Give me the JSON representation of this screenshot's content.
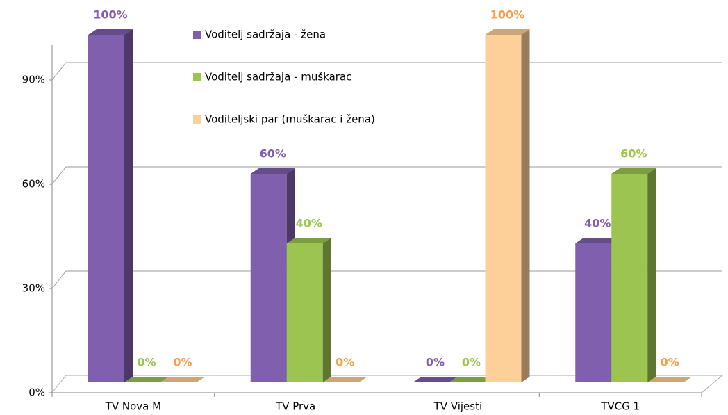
{
  "chart_data": {
    "type": "bar3d",
    "categories": [
      "TV Nova M",
      "TV Prva",
      "TV Vijesti",
      "TVCG 1"
    ],
    "series": [
      {
        "name": "Voditelj sadržaja - žena",
        "color": "#7f5fae",
        "label_color": "#7f5fae",
        "values": [
          100,
          60,
          0,
          40
        ],
        "value_labels": [
          "100%",
          "60%",
          "0%",
          "40%"
        ]
      },
      {
        "name": "Voditelj sadržaja - muškarac",
        "color": "#9bc550",
        "label_color": "#9bc550",
        "values": [
          0,
          40,
          0,
          60
        ],
        "value_labels": [
          "0%",
          "40%",
          "0%",
          "60%"
        ]
      },
      {
        "name": "Voditeljski par (muškarac i žena)",
        "color": "#fdd09a",
        "label_color": "#f5a04a",
        "values": [
          0,
          0,
          100,
          0
        ],
        "value_labels": [
          "0%",
          "0%",
          "100%",
          "0%"
        ]
      }
    ],
    "ylim": [
      0,
      100
    ],
    "yticks": [
      {
        "value": 0,
        "label": "0%"
      },
      {
        "value": 30,
        "label": "30%"
      },
      {
        "value": 60,
        "label": "60%"
      },
      {
        "value": 90,
        "label": "90%"
      }
    ],
    "grid": true
  }
}
